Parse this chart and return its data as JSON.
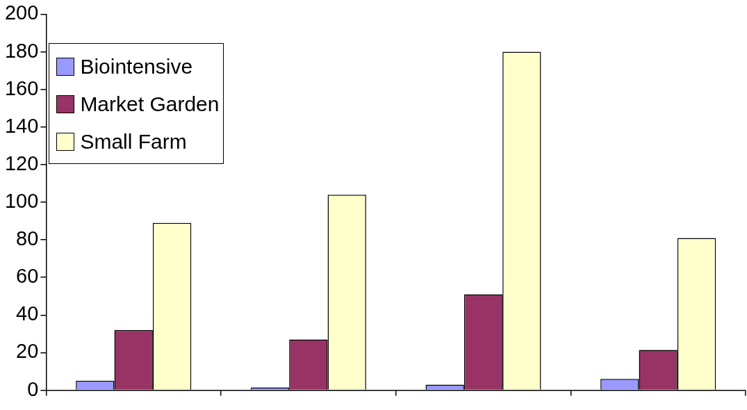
{
  "chart_data": {
    "type": "bar",
    "categories": [
      null,
      null,
      null,
      null
    ],
    "series": [
      {
        "name": "Biointensive",
        "color": "#9999ff",
        "values": [
          5,
          1.5,
          3,
          6
        ]
      },
      {
        "name": "Market Garden",
        "color": "#993366",
        "values": [
          32,
          27,
          51,
          21.5
        ]
      },
      {
        "name": "Small Farm",
        "color": "#ffffcc",
        "values": [
          89,
          104,
          180,
          81
        ]
      }
    ],
    "ylim": [
      0,
      200
    ],
    "yticks": [
      0,
      20,
      40,
      60,
      80,
      100,
      120,
      140,
      160,
      180,
      200
    ],
    "grid": false,
    "legend": "top left"
  }
}
